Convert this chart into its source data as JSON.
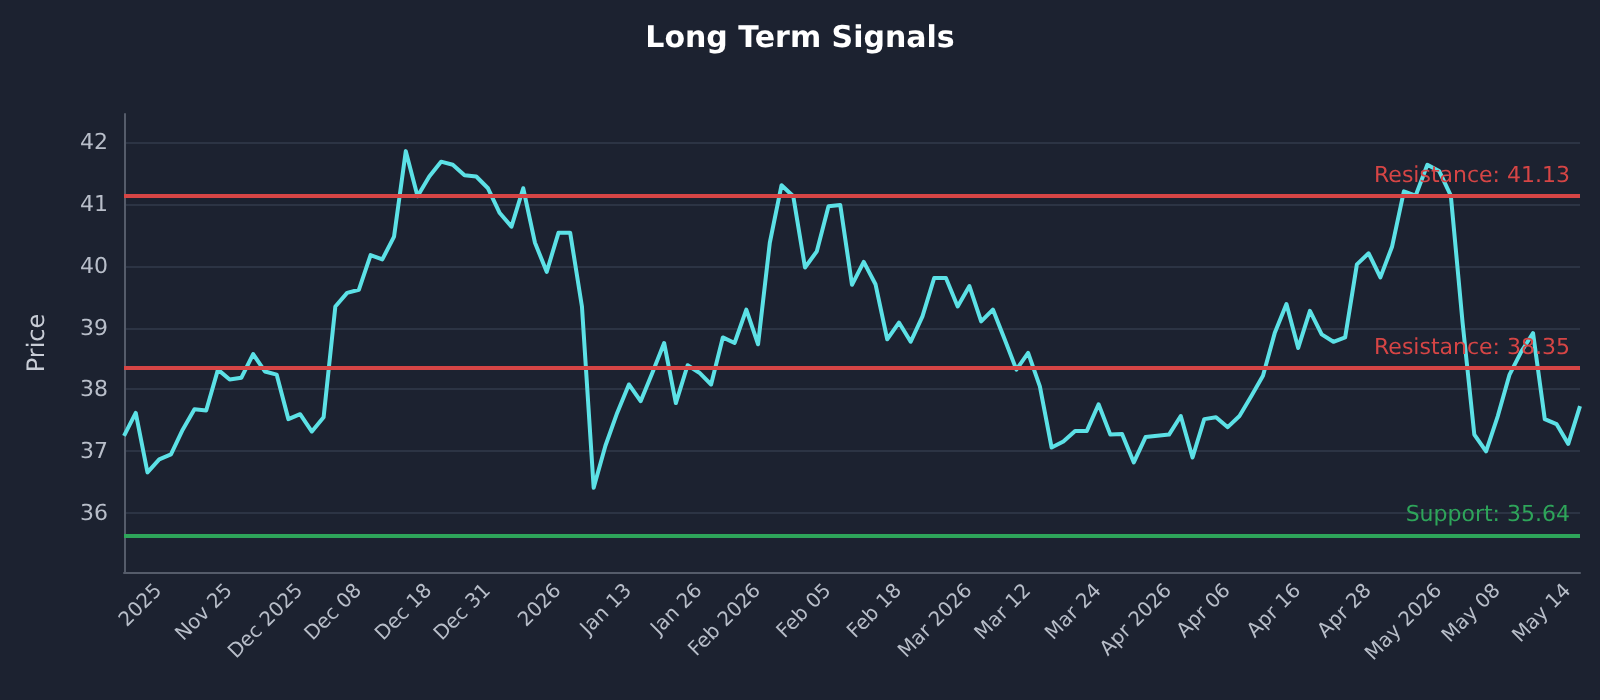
{
  "chart_data": {
    "type": "line",
    "title": "Long Term Signals",
    "ylabel": "Price",
    "categories": [
      null,
      null,
      null,
      "2025",
      null,
      null,
      null,
      null,
      null,
      "Nov 25",
      null,
      null,
      null,
      null,
      null,
      "Dec 2025",
      null,
      null,
      null,
      null,
      "Dec 08",
      null,
      null,
      null,
      null,
      null,
      "Dec 18",
      null,
      null,
      null,
      null,
      "Dec 31",
      null,
      null,
      null,
      null,
      null,
      "2026",
      null,
      null,
      null,
      null,
      null,
      "Jan 13",
      null,
      null,
      null,
      null,
      null,
      "Jan 26",
      null,
      null,
      null,
      null,
      "Feb 2026",
      null,
      null,
      null,
      null,
      null,
      "Feb 05",
      null,
      null,
      null,
      null,
      null,
      "Feb 18",
      null,
      null,
      null,
      null,
      null,
      "Mar 2026",
      null,
      null,
      null,
      null,
      "Mar 12",
      null,
      null,
      null,
      null,
      null,
      "Mar 24",
      null,
      null,
      null,
      null,
      null,
      "Apr 2026",
      null,
      null,
      null,
      null,
      "Apr 06",
      null,
      null,
      null,
      null,
      null,
      "Apr 16",
      null,
      null,
      null,
      null,
      null,
      "Apr 28",
      null,
      null,
      null,
      null,
      null,
      "May 2026",
      null,
      null,
      null,
      null,
      "May 08",
      null,
      null,
      null,
      null,
      null,
      "May 14",
      null
    ],
    "series": [
      {
        "color": "#5ce1e6",
        "values": [
          37.25,
          37.62,
          36.66,
          36.87,
          36.95,
          37.35,
          37.68,
          37.66,
          38.32,
          38.16,
          38.19,
          38.57,
          38.29,
          38.24,
          37.52,
          37.6,
          37.32,
          37.55,
          39.34,
          39.56,
          39.61,
          40.17,
          40.1,
          40.47,
          41.85,
          41.12,
          41.44,
          41.68,
          41.63,
          41.46,
          41.44,
          41.25,
          40.85,
          40.63,
          41.25,
          40.37,
          39.9,
          40.53,
          40.53,
          39.34,
          36.41,
          37.09,
          37.62,
          38.08,
          37.81,
          38.27,
          38.75,
          37.78,
          38.39,
          38.27,
          38.08,
          38.84,
          38.75,
          39.29,
          38.73,
          40.37,
          41.3,
          41.12,
          39.97,
          40.23,
          40.96,
          40.98,
          39.69,
          40.06,
          39.7,
          38.81,
          39.08,
          38.77,
          39.18,
          39.8,
          39.8,
          39.34,
          39.67,
          39.1,
          39.29,
          38.81,
          38.32,
          38.59,
          38.05,
          37.06,
          37.16,
          37.33,
          37.33,
          37.76,
          37.27,
          37.28,
          36.82,
          37.23,
          37.25,
          37.27,
          37.57,
          36.9,
          37.52,
          37.55,
          37.39,
          37.57,
          37.89,
          38.22,
          38.91,
          39.38,
          38.67,
          39.27,
          38.89,
          38.77,
          38.84,
          40.02,
          40.2,
          39.81,
          40.31,
          41.2,
          41.13,
          41.63,
          41.53,
          41.13,
          39.08,
          37.27,
          37.0,
          37.57,
          38.24,
          38.61,
          38.91,
          37.52,
          37.44,
          37.12,
          37.73
        ]
      }
    ],
    "ylim": [
      35.05,
      42.45
    ],
    "yticks": [
      36,
      37,
      38,
      39,
      40,
      41,
      42
    ],
    "grid": "y",
    "marker": "none",
    "line_style": "solid",
    "ref_lines": [
      {
        "axis": "y",
        "value": 41.13,
        "label": "Resistance: 41.13",
        "color": "#d64545"
      },
      {
        "axis": "y",
        "value": 38.35,
        "label": "Resistance: 38.35",
        "color": "#d64545"
      },
      {
        "axis": "y",
        "value": 35.64,
        "label": "Support: 35.64",
        "color": "#2ea55a"
      }
    ]
  }
}
